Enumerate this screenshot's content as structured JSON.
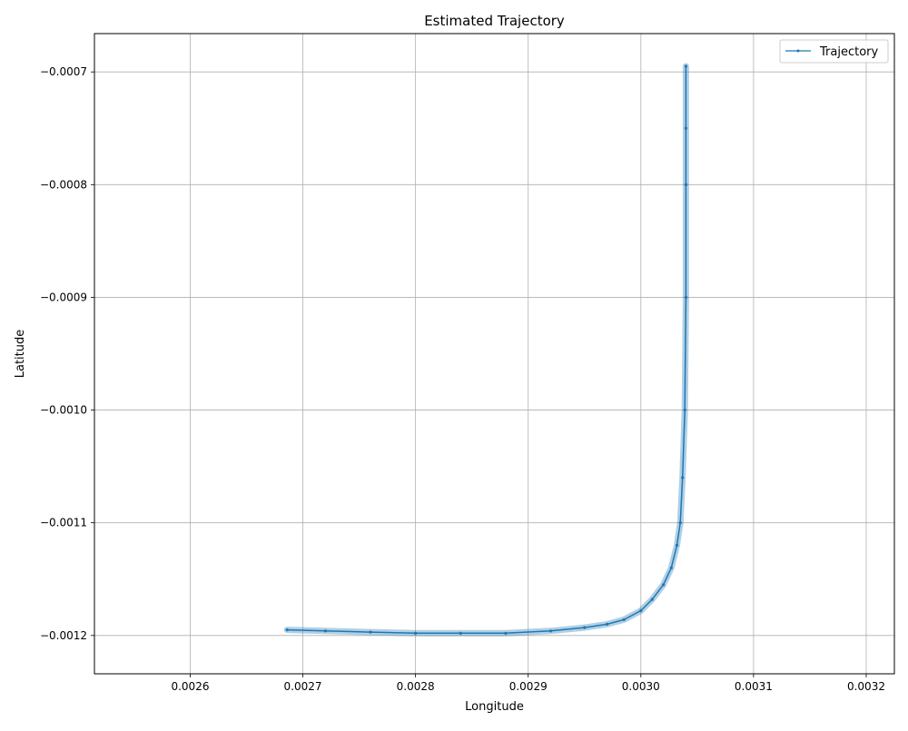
{
  "chart_data": {
    "type": "line",
    "title": "Estimated Trajectory",
    "xlabel": "Longitude",
    "ylabel": "Latitude",
    "xlim": [
      0.002515,
      0.003225
    ],
    "ylim": [
      -0.001234,
      -0.000666
    ],
    "xticks": [
      0.0026,
      0.0027,
      0.0028,
      0.0029,
      0.003,
      0.0031,
      0.0032
    ],
    "xtick_labels": [
      "0.0026",
      "0.0027",
      "0.0028",
      "0.0029",
      "0.0030",
      "0.0031",
      "0.0032"
    ],
    "yticks": [
      -0.0007,
      -0.0008,
      -0.0009,
      -0.001,
      -0.0011,
      -0.0012
    ],
    "ytick_labels": [
      "−0.0007",
      "−0.0008",
      "−0.0009",
      "−0.0010",
      "−0.0011",
      "−0.0012"
    ],
    "grid": true,
    "legend_position": "top-right",
    "series": [
      {
        "name": "Trajectory",
        "color": "#1f77b4",
        "marker": "point",
        "x": [
          0.002686,
          0.00272,
          0.00276,
          0.0028,
          0.00284,
          0.00288,
          0.00292,
          0.00295,
          0.00297,
          0.002985,
          0.003,
          0.00301,
          0.00302,
          0.003027,
          0.003032,
          0.003035,
          0.003037,
          0.003039,
          0.00304,
          0.00304,
          0.00304,
          0.00304
        ],
        "y": [
          -0.001195,
          -0.001196,
          -0.001197,
          -0.001198,
          -0.001198,
          -0.001198,
          -0.001196,
          -0.001193,
          -0.00119,
          -0.001186,
          -0.001178,
          -0.001168,
          -0.001155,
          -0.00114,
          -0.00112,
          -0.0011,
          -0.00106,
          -0.001,
          -0.0009,
          -0.0008,
          -0.00075,
          -0.000695
        ]
      }
    ]
  }
}
